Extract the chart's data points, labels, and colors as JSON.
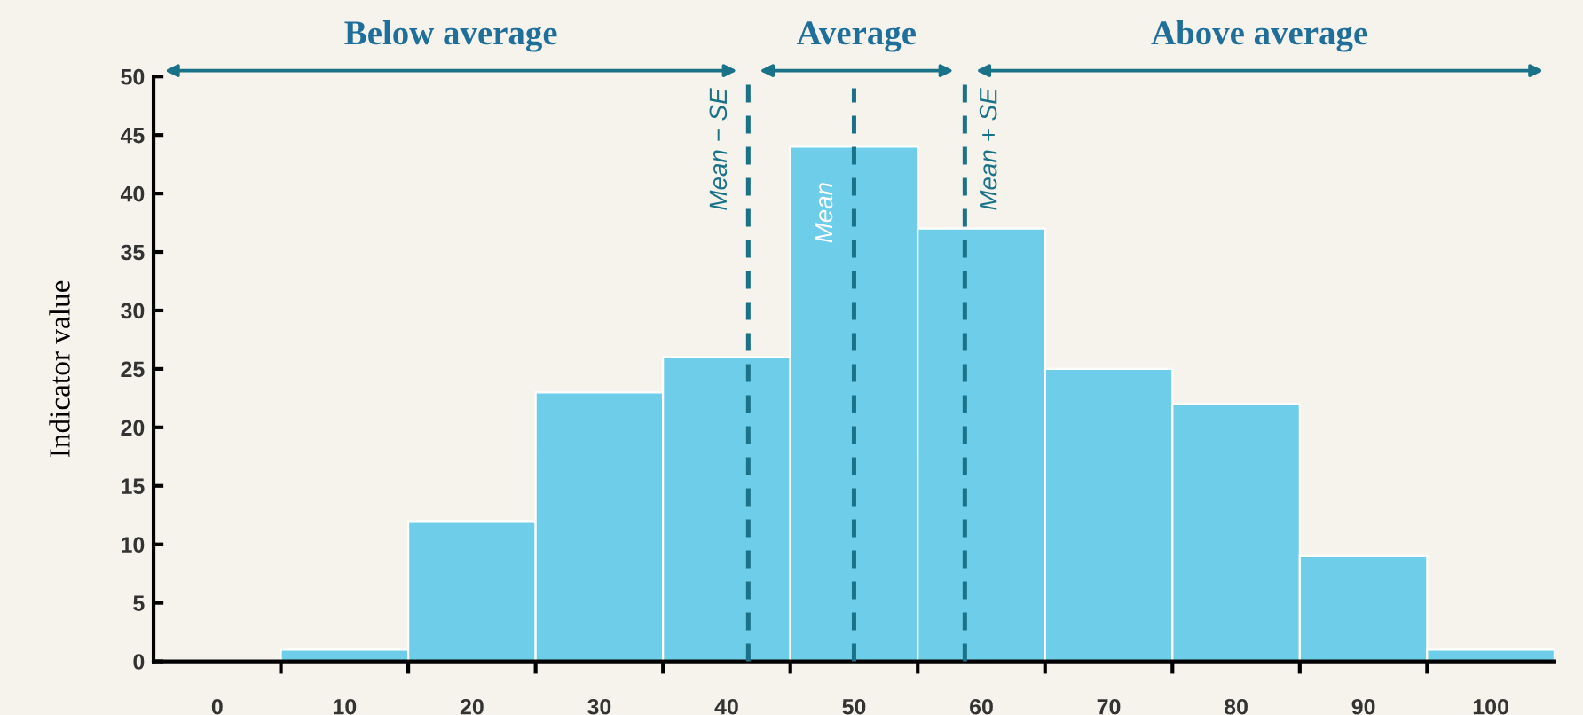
{
  "chart_data": {
    "type": "histogram",
    "ylabel": "Indicator value",
    "bins": [
      -5,
      5,
      15,
      25,
      35,
      45,
      55,
      65,
      75,
      85,
      95,
      105
    ],
    "values": [
      0,
      1,
      12,
      23,
      26,
      44,
      37,
      25,
      22,
      9,
      1
    ],
    "color": "#6ecde9",
    "xlim": [
      -5,
      105
    ],
    "ylim": [
      0,
      50
    ],
    "xticks": [
      0,
      {
        "value": 5,
        "label": null
      },
      10,
      {
        "value": 15,
        "label": null
      },
      20,
      {
        "value": 25,
        "label": null
      },
      30,
      {
        "value": 35,
        "label": null
      },
      40,
      {
        "value": 45,
        "label": null
      },
      50,
      {
        "value": 55,
        "label": null
      },
      60,
      {
        "value": 65,
        "label": null
      },
      70,
      {
        "value": 75,
        "label": null
      },
      80,
      {
        "value": 85,
        "label": null
      },
      90,
      {
        "value": 95,
        "label": null
      },
      100
    ],
    "yticks": [
      0,
      5,
      10,
      15,
      20,
      25,
      30,
      35,
      40,
      45,
      50
    ],
    "ref_lines": [
      {
        "axis": "x",
        "value": 41.7,
        "label": "Mean − SE",
        "color": "#1a7288",
        "line_style": "dashed"
      },
      {
        "axis": "x",
        "value": 50,
        "label": "Mean",
        "color": "#1a7288",
        "line_style": "dashed"
      },
      {
        "axis": "x",
        "value": 58.7,
        "label": "Mean + SE",
        "color": "#1a7288",
        "line_style": "dashed"
      }
    ],
    "annotations": [
      "Below average",
      "Average",
      "Above average"
    ],
    "grid": false,
    "legend": false
  }
}
